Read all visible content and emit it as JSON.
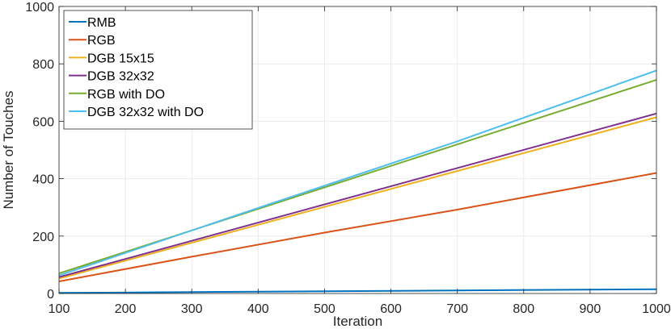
{
  "chart_data": {
    "type": "line",
    "title": "",
    "xlabel": "Iteration",
    "ylabel": "Number of Touches",
    "xlim": [
      100,
      1000
    ],
    "ylim": [
      0,
      1000
    ],
    "xticks": [
      100,
      200,
      300,
      400,
      500,
      600,
      700,
      800,
      900,
      1000
    ],
    "yticks": [
      0,
      200,
      400,
      600,
      800,
      1000
    ],
    "grid": true,
    "legend_position": "top-left",
    "series": [
      {
        "name": "RMB",
        "color": "#0072BD",
        "x": [
          100,
          1000
        ],
        "y": [
          2,
          15
        ]
      },
      {
        "name": "RGB",
        "color": "#D95319",
        "x": [
          100,
          300,
          500,
          700,
          1000
        ],
        "y": [
          42,
          128,
          212,
          292,
          420
        ]
      },
      {
        "name": "DGB 15x15",
        "color": "#EDB120",
        "x": [
          100,
          1000
        ],
        "y": [
          52,
          614
        ]
      },
      {
        "name": "DGB 32x32",
        "color": "#7E2F8E",
        "x": [
          100,
          1000
        ],
        "y": [
          57,
          627
        ]
      },
      {
        "name": "RGB with DO",
        "color": "#77AC30",
        "x": [
          100,
          1000
        ],
        "y": [
          70,
          744
        ]
      },
      {
        "name": "DGB 32x32 with DO",
        "color": "#4DBEEE",
        "x": [
          100,
          400,
          700,
          1000
        ],
        "y": [
          63,
          298,
          530,
          777
        ]
      }
    ]
  }
}
